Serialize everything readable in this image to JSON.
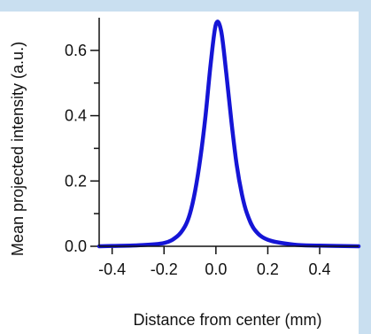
{
  "chart_data": {
    "type": "line",
    "title": "",
    "xlabel": "Distance from center (mm)",
    "ylabel": "Mean projected intensity (a.u.)",
    "xlim": [
      -0.45,
      0.55
    ],
    "ylim": [
      0.0,
      0.7
    ],
    "x_ticks": [
      -0.4,
      -0.2,
      0.0,
      0.2,
      0.4
    ],
    "x_tick_labels": [
      "-0.4",
      "-0.2",
      "0.0",
      "0.2",
      "0.4"
    ],
    "y_ticks": [
      0.0,
      0.2,
      0.4,
      0.6
    ],
    "y_tick_labels": [
      "0.0",
      "0.2",
      "0.4",
      "0.6"
    ],
    "y_minor_ticks": [
      0.1,
      0.3,
      0.5
    ],
    "grid": false,
    "series": [
      {
        "color": "#1515d6",
        "x": [
          -0.45,
          -0.4,
          -0.3,
          -0.2,
          -0.15,
          -0.12,
          -0.1,
          -0.08,
          -0.06,
          -0.04,
          -0.02,
          0.0,
          0.02,
          0.04,
          0.06,
          0.08,
          0.1,
          0.12,
          0.15,
          0.2,
          0.3,
          0.4,
          0.55
        ],
        "y": [
          0.0,
          0.001,
          0.003,
          0.01,
          0.03,
          0.06,
          0.1,
          0.17,
          0.27,
          0.4,
          0.56,
          0.68,
          0.66,
          0.53,
          0.38,
          0.25,
          0.16,
          0.1,
          0.05,
          0.02,
          0.005,
          0.002,
          0.0
        ]
      }
    ]
  },
  "colors": {
    "frame_band": "#c9dff0",
    "axis": "#111111",
    "series": "#1515d6"
  }
}
